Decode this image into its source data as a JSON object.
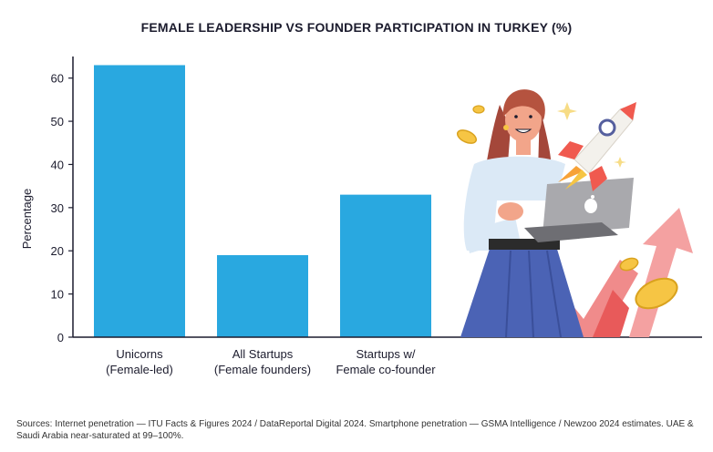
{
  "chart_data": {
    "type": "bar",
    "title": "FEMALE LEADERSHIP VS FOUNDER PARTICIPATION IN TURKEY (%)",
    "xlabel": "",
    "ylabel": "Percentage",
    "categories": [
      [
        "Unicorns",
        "(Female-led)"
      ],
      [
        "All Startups",
        "(Female founders)"
      ],
      [
        "Startups w/",
        "Female co-founder"
      ]
    ],
    "values": [
      63,
      19,
      33
    ],
    "ylim": [
      0,
      65
    ],
    "yticks": [
      0,
      10,
      20,
      30,
      40,
      50,
      60
    ],
    "bar_color": "#29a8e0",
    "grid": false
  },
  "source": "Sources: Internet penetration — ITU Facts & Figures 2024 / DataReportal Digital 2024. Smartphone penetration — GSMA Intelligence / Newzoo 2024 estimates. UAE & Saudi Arabia near-saturated at 99–100%.",
  "illustration": "woman-with-laptop-rocket-growth-arrow-illustration"
}
